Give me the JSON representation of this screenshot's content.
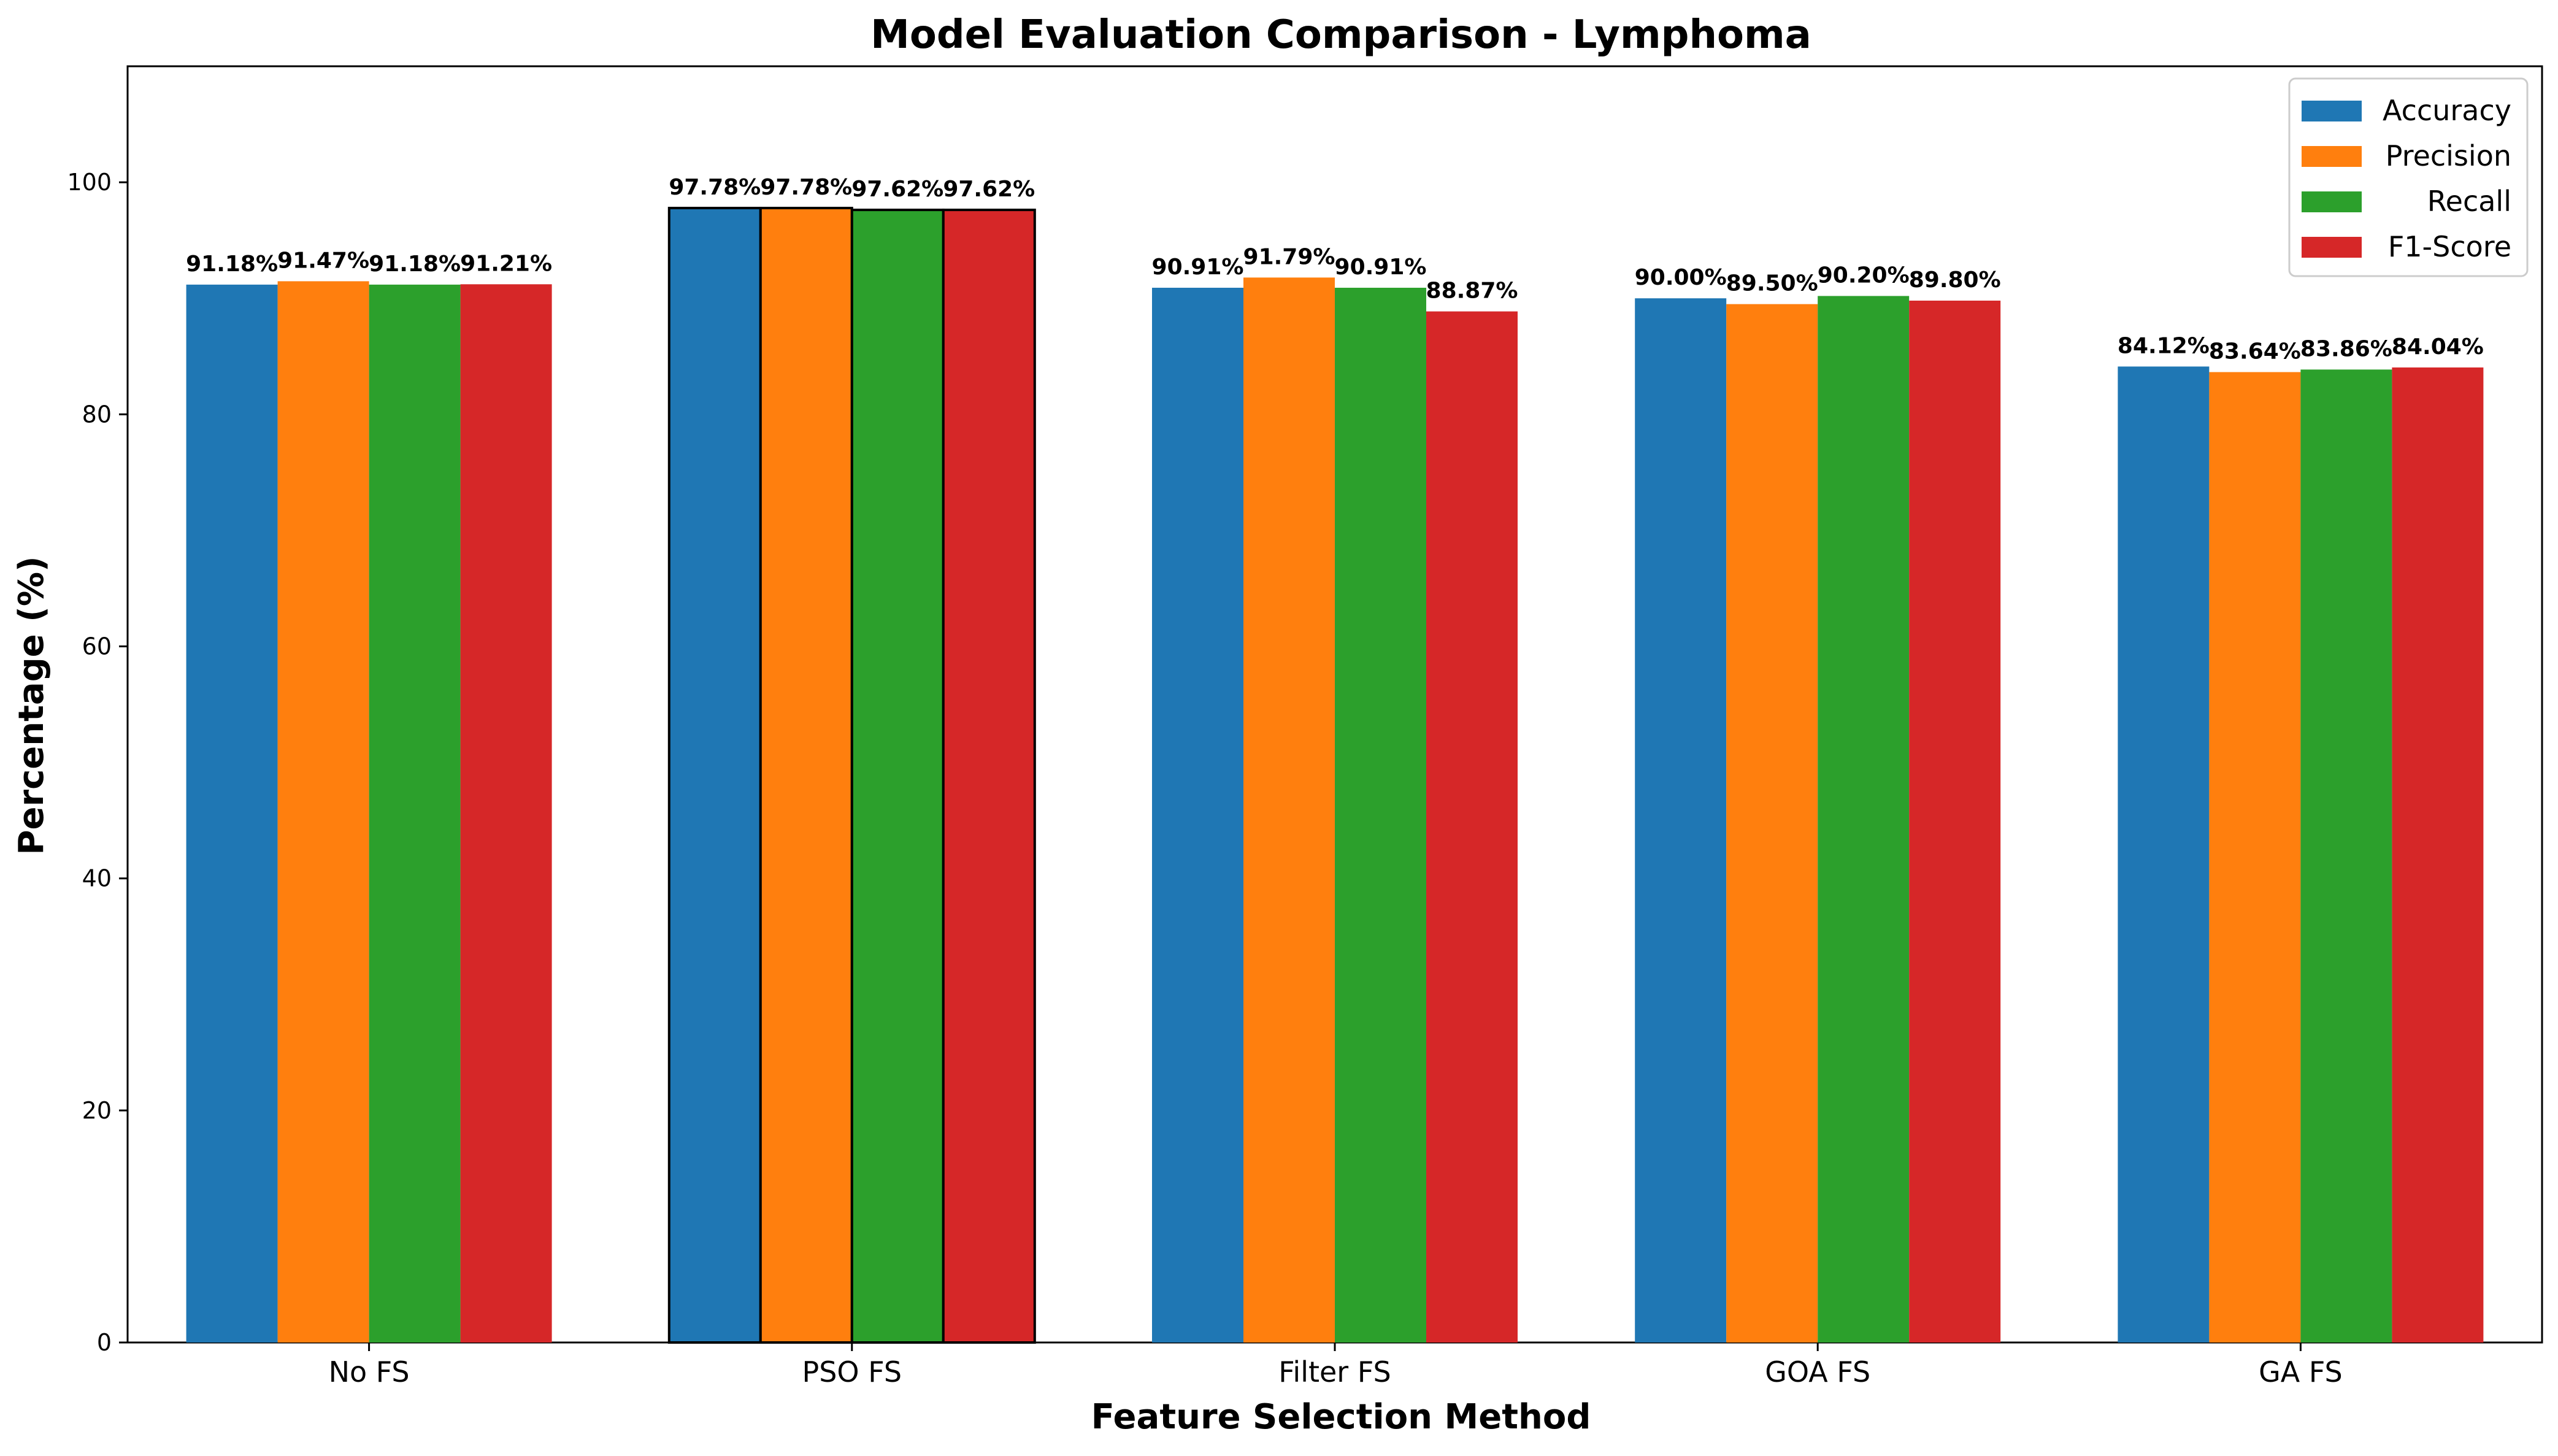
{
  "chart_data": {
    "type": "bar",
    "title": "Model Evaluation Comparison - Lymphoma",
    "xlabel": "Feature Selection Method",
    "ylabel": "Percentage (%)",
    "ylim": [
      0,
      110
    ],
    "yticks": [
      0,
      20,
      40,
      60,
      80,
      100
    ],
    "categories": [
      "No FS",
      "PSO FS",
      "Filter FS",
      "GOA FS",
      "GA FS"
    ],
    "highlighted_category": "PSO FS",
    "series": [
      {
        "name": "Accuracy",
        "color": "#1f77b4",
        "values": [
          91.18,
          97.78,
          90.91,
          90.0,
          84.12
        ],
        "labels": [
          "91.18%",
          "97.78%",
          "90.91%",
          "90.00%",
          "84.12%"
        ]
      },
      {
        "name": "Precision",
        "color": "#ff7f0e",
        "values": [
          91.47,
          97.78,
          91.79,
          89.5,
          83.64
        ],
        "labels": [
          "91.47%",
          "97.78%",
          "91.79%",
          "89.50%",
          "83.64%"
        ]
      },
      {
        "name": "Recall",
        "color": "#2ca02c",
        "values": [
          91.18,
          97.62,
          90.91,
          90.2,
          83.86
        ],
        "labels": [
          "91.18%",
          "97.62%",
          "90.91%",
          "90.20%",
          "83.86%"
        ]
      },
      {
        "name": "F1-Score",
        "color": "#d62728",
        "values": [
          91.21,
          97.62,
          88.87,
          89.8,
          84.04
        ],
        "labels": [
          "91.21%",
          "97.62%",
          "88.87%",
          "89.80%",
          "84.04%"
        ]
      }
    ],
    "legend": "top-right",
    "grid": false
  }
}
